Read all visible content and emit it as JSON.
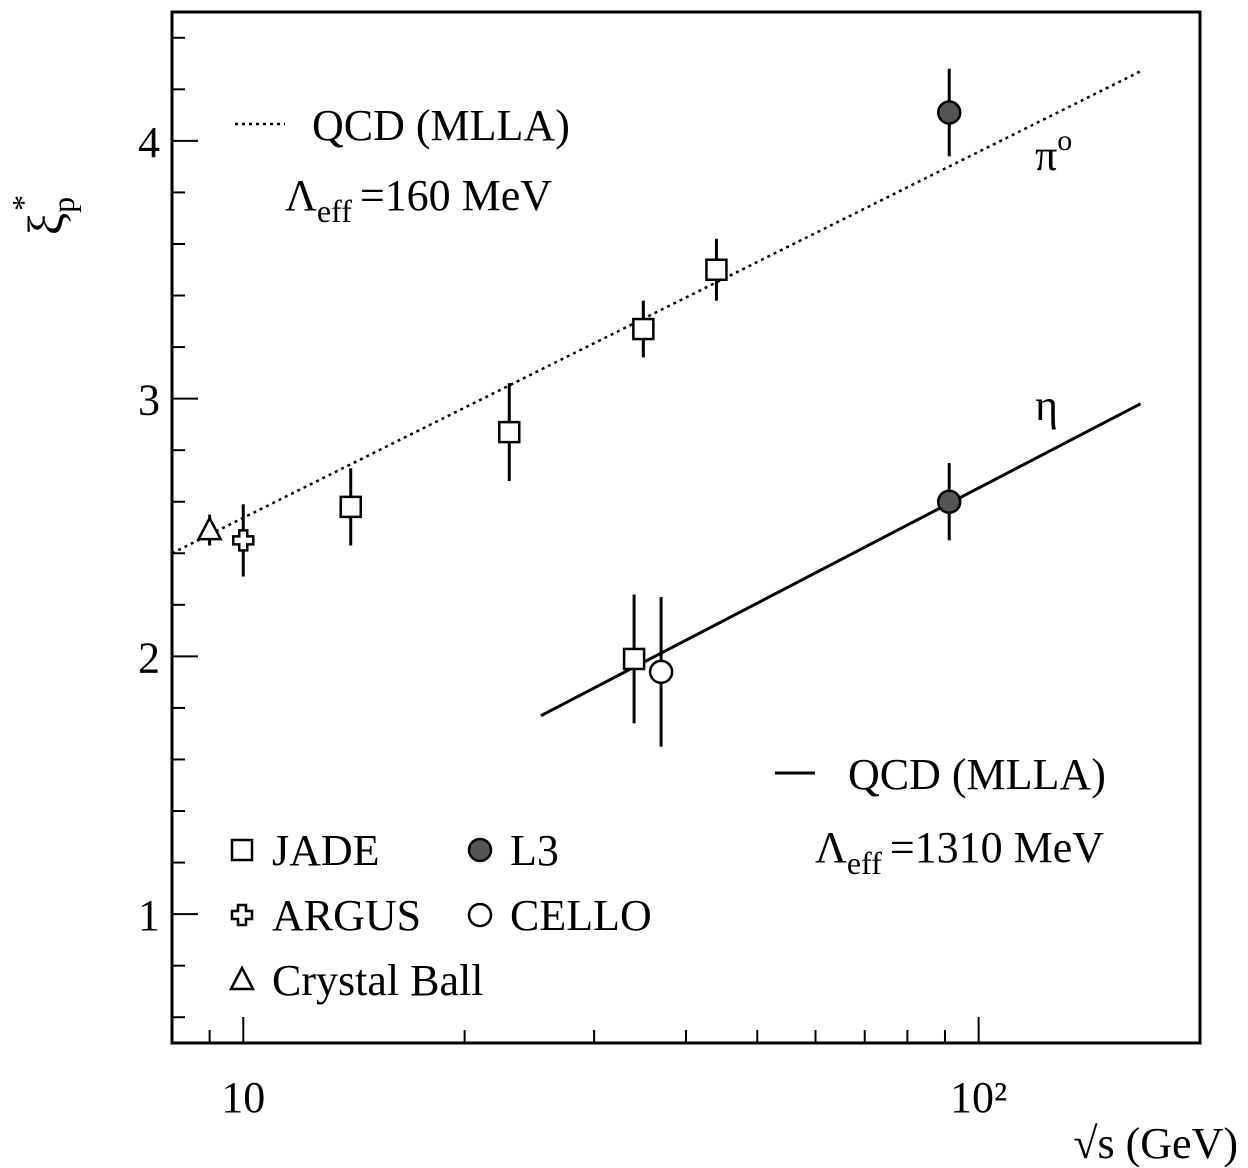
{
  "chart_data": {
    "type": "scatter",
    "xlabel": "√s (GeV)",
    "ylabel": {
      "symbol": "ξ",
      "subscript": "p",
      "superscript": "*"
    },
    "xscale": "log",
    "xlim": [
      8,
      200
    ],
    "ylim": [
      0.5,
      4.5
    ],
    "xticks": [
      10,
      {
        "value": 100,
        "label": "10²"
      }
    ],
    "yticks": [
      1,
      2,
      3,
      4
    ],
    "xminor_ticks": [
      9,
      20,
      30,
      40,
      50,
      60,
      70,
      80,
      90,
      200
    ],
    "yminor_ticks": [
      0.6,
      0.8,
      1.2,
      1.4,
      1.6,
      1.8,
      2.2,
      2.4,
      2.6,
      2.8,
      3.2,
      3.4,
      3.6,
      3.8,
      4.2,
      4.4
    ],
    "series": [
      {
        "name": "JADE",
        "marker": "square",
        "color": "#ffffff",
        "x": [
          14,
          23,
          35,
          44,
          34
        ],
        "values": [
          2.58,
          2.87,
          3.27,
          3.5,
          1.99
        ],
        "errors": [
          0.15,
          0.19,
          0.11,
          0.12,
          0.25
        ]
      },
      {
        "name": "L3",
        "marker": "circle",
        "color": "#555555",
        "x": [
          91.2,
          91.2
        ],
        "values": [
          4.11,
          2.6
        ],
        "errors": [
          0.17,
          0.15
        ]
      },
      {
        "name": "ARGUS",
        "marker": "cross",
        "color": "#ffffff",
        "x": [
          10
        ],
        "values": [
          2.45
        ],
        "errors": [
          0.14
        ]
      },
      {
        "name": "CELLO",
        "marker": "circle",
        "color": "#ffffff",
        "x": [
          37
        ],
        "values": [
          1.94
        ],
        "errors": [
          0.29
        ]
      },
      {
        "name": "Crystal Ball",
        "marker": "triangle",
        "color": "#ffffff",
        "x": [
          9
        ],
        "values": [
          2.49
        ],
        "errors": [
          0.06
        ]
      }
    ],
    "fits": [
      {
        "label": "QCD (MLLA)",
        "style": "dotted",
        "lambda": {
          "symbol": "Λ",
          "subscript": "eff",
          "text": "=160 MeV"
        },
        "particle": {
          "symbol": "π",
          "superscript": "o"
        },
        "x": [
          8,
          166
        ],
        "values": [
          2.4,
          4.27
        ]
      },
      {
        "label": "QCD (MLLA)",
        "style": "solid",
        "lambda": {
          "symbol": "Λ",
          "subscript": "eff",
          "text": "=1310 MeV"
        },
        "particle": {
          "symbol": "η"
        },
        "x": [
          25.4,
          166
        ],
        "values": [
          1.77,
          2.98
        ]
      }
    ]
  }
}
